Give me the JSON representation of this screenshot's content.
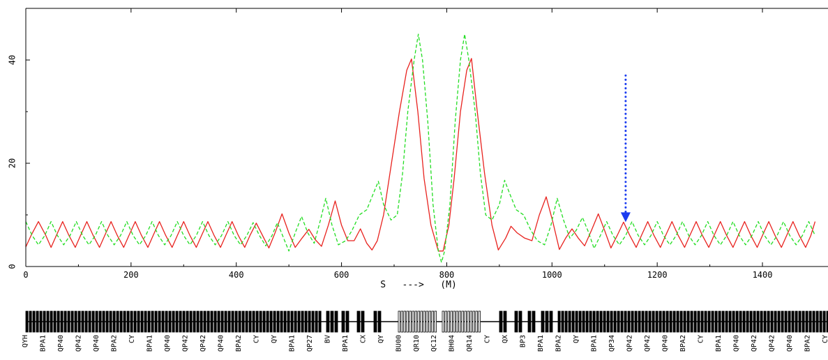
{
  "chart_data": {
    "type": "line",
    "title": "",
    "xlabel": "S   --->   (M)",
    "ylabel": "",
    "xlim": [
      0,
      1500
    ],
    "ylim": [
      0,
      46
    ],
    "xticks": [
      "0",
      "200",
      "400",
      "600",
      "800",
      "1000",
      "1200",
      "1400"
    ],
    "yticks": [
      "0",
      "20",
      "40"
    ],
    "grid": false,
    "legend": "none",
    "series": [
      {
        "color": "#e8221e",
        "style": "solid",
        "points": [
          [
            0,
            3.8
          ],
          [
            10,
            6
          ],
          [
            24,
            8.7
          ],
          [
            38,
            6
          ],
          [
            48,
            3.7
          ],
          [
            58,
            6
          ],
          [
            70,
            8.7
          ],
          [
            82,
            6
          ],
          [
            94,
            3.7
          ],
          [
            104,
            6
          ],
          [
            116,
            8.7
          ],
          [
            128,
            6
          ],
          [
            140,
            3.7
          ],
          [
            150,
            6
          ],
          [
            162,
            8.7
          ],
          [
            174,
            6
          ],
          [
            186,
            3.7
          ],
          [
            196,
            6
          ],
          [
            208,
            8.7
          ],
          [
            220,
            6
          ],
          [
            232,
            3.7
          ],
          [
            242,
            6
          ],
          [
            254,
            8.7
          ],
          [
            266,
            6
          ],
          [
            278,
            3.7
          ],
          [
            288,
            6
          ],
          [
            300,
            8.7
          ],
          [
            312,
            6
          ],
          [
            324,
            3.7
          ],
          [
            334,
            6
          ],
          [
            346,
            8.7
          ],
          [
            358,
            6
          ],
          [
            370,
            3.7
          ],
          [
            380,
            6
          ],
          [
            392,
            8.7
          ],
          [
            404,
            6
          ],
          [
            416,
            3.7
          ],
          [
            426,
            6
          ],
          [
            438,
            8.4
          ],
          [
            450,
            6
          ],
          [
            462,
            3.6
          ],
          [
            474,
            6.6
          ],
          [
            487,
            10.2
          ],
          [
            500,
            6.5
          ],
          [
            512,
            3.7
          ],
          [
            525,
            5.5
          ],
          [
            538,
            7.2
          ],
          [
            550,
            5.2
          ],
          [
            562,
            3.9
          ],
          [
            575,
            8
          ],
          [
            588,
            12.7
          ],
          [
            600,
            8
          ],
          [
            612,
            5
          ],
          [
            624,
            5
          ],
          [
            636,
            7.3
          ],
          [
            648,
            4.5
          ],
          [
            658,
            3.2
          ],
          [
            668,
            5
          ],
          [
            680,
            10
          ],
          [
            695,
            20
          ],
          [
            710,
            30
          ],
          [
            724,
            38
          ],
          [
            733,
            40.2
          ],
          [
            745,
            30
          ],
          [
            757,
            17
          ],
          [
            770,
            8
          ],
          [
            784,
            3
          ],
          [
            793,
            3
          ],
          [
            804,
            8
          ],
          [
            814,
            17
          ],
          [
            826,
            30
          ],
          [
            838,
            38
          ],
          [
            847,
            40.3
          ],
          [
            858,
            30
          ],
          [
            872,
            18
          ],
          [
            886,
            8
          ],
          [
            898,
            3.2
          ],
          [
            912,
            5.5
          ],
          [
            922,
            7.8
          ],
          [
            934,
            6.5
          ],
          [
            948,
            5.5
          ],
          [
            962,
            5
          ],
          [
            976,
            10
          ],
          [
            989,
            13.5
          ],
          [
            1002,
            8.5
          ],
          [
            1014,
            3.3
          ],
          [
            1026,
            5.5
          ],
          [
            1038,
            7.3
          ],
          [
            1050,
            5.5
          ],
          [
            1062,
            4
          ],
          [
            1075,
            7
          ],
          [
            1088,
            10.2
          ],
          [
            1100,
            7
          ],
          [
            1112,
            3.6
          ],
          [
            1124,
            6
          ],
          [
            1136,
            8.6
          ],
          [
            1148,
            6
          ],
          [
            1160,
            3.7
          ],
          [
            1170,
            6
          ],
          [
            1182,
            8.7
          ],
          [
            1194,
            6
          ],
          [
            1206,
            3.7
          ],
          [
            1216,
            6
          ],
          [
            1228,
            8.7
          ],
          [
            1240,
            6
          ],
          [
            1252,
            3.7
          ],
          [
            1262,
            6
          ],
          [
            1274,
            8.7
          ],
          [
            1286,
            6
          ],
          [
            1298,
            3.7
          ],
          [
            1308,
            6
          ],
          [
            1320,
            8.7
          ],
          [
            1332,
            6
          ],
          [
            1344,
            3.7
          ],
          [
            1354,
            6
          ],
          [
            1366,
            8.7
          ],
          [
            1378,
            6
          ],
          [
            1390,
            3.7
          ],
          [
            1400,
            6
          ],
          [
            1412,
            8.7
          ],
          [
            1424,
            6
          ],
          [
            1436,
            3.7
          ],
          [
            1446,
            6
          ],
          [
            1458,
            8.7
          ],
          [
            1470,
            6
          ],
          [
            1482,
            3.7
          ],
          [
            1492,
            6
          ],
          [
            1500,
            8.7
          ]
        ]
      },
      {
        "color": "#22dd22",
        "style": "dashed",
        "points": [
          [
            0,
            8.7
          ],
          [
            12,
            6
          ],
          [
            24,
            4.2
          ],
          [
            36,
            6
          ],
          [
            48,
            8.7
          ],
          [
            60,
            6
          ],
          [
            72,
            4.2
          ],
          [
            84,
            6
          ],
          [
            96,
            8.7
          ],
          [
            108,
            6
          ],
          [
            120,
            4.2
          ],
          [
            132,
            6
          ],
          [
            144,
            8.7
          ],
          [
            156,
            6
          ],
          [
            168,
            4.2
          ],
          [
            180,
            6
          ],
          [
            192,
            8.7
          ],
          [
            204,
            6
          ],
          [
            216,
            4.2
          ],
          [
            228,
            6
          ],
          [
            240,
            8.7
          ],
          [
            252,
            6
          ],
          [
            264,
            4.2
          ],
          [
            276,
            6
          ],
          [
            288,
            8.7
          ],
          [
            300,
            6
          ],
          [
            312,
            4.2
          ],
          [
            324,
            6
          ],
          [
            336,
            8.7
          ],
          [
            348,
            6
          ],
          [
            360,
            4.2
          ],
          [
            372,
            6
          ],
          [
            384,
            8.7
          ],
          [
            396,
            6
          ],
          [
            408,
            4.2
          ],
          [
            420,
            6
          ],
          [
            432,
            8.5
          ],
          [
            444,
            6
          ],
          [
            456,
            4
          ],
          [
            468,
            6
          ],
          [
            478,
            8.5
          ],
          [
            490,
            5.5
          ],
          [
            500,
            3
          ],
          [
            512,
            6.5
          ],
          [
            524,
            9.7
          ],
          [
            536,
            6.5
          ],
          [
            548,
            4.5
          ],
          [
            560,
            9
          ],
          [
            570,
            13.2
          ],
          [
            582,
            8
          ],
          [
            594,
            4.2
          ],
          [
            608,
            5
          ],
          [
            620,
            7
          ],
          [
            634,
            10
          ],
          [
            648,
            11
          ],
          [
            660,
            14
          ],
          [
            670,
            16.5
          ],
          [
            680,
            12
          ],
          [
            694,
            9
          ],
          [
            706,
            10
          ],
          [
            716,
            18
          ],
          [
            726,
            30
          ],
          [
            738,
            40
          ],
          [
            746,
            45
          ],
          [
            754,
            40
          ],
          [
            764,
            28
          ],
          [
            774,
            12
          ],
          [
            784,
            3
          ],
          [
            790,
            0.8
          ],
          [
            796,
            3
          ],
          [
            806,
            12
          ],
          [
            816,
            28
          ],
          [
            826,
            40
          ],
          [
            834,
            45
          ],
          [
            842,
            40
          ],
          [
            854,
            30
          ],
          [
            864,
            18
          ],
          [
            874,
            10
          ],
          [
            886,
            9
          ],
          [
            900,
            12
          ],
          [
            910,
            16.7
          ],
          [
            920,
            14
          ],
          [
            932,
            11
          ],
          [
            946,
            10
          ],
          [
            960,
            7
          ],
          [
            972,
            5
          ],
          [
            986,
            4.2
          ],
          [
            998,
            8
          ],
          [
            1010,
            13.2
          ],
          [
            1022,
            9
          ],
          [
            1034,
            5.5
          ],
          [
            1046,
            7
          ],
          [
            1058,
            9.5
          ],
          [
            1070,
            6.5
          ],
          [
            1080,
            3.5
          ],
          [
            1092,
            6
          ],
          [
            1104,
            8.7
          ],
          [
            1116,
            6
          ],
          [
            1128,
            4.2
          ],
          [
            1140,
            6
          ],
          [
            1152,
            8.7
          ],
          [
            1164,
            6
          ],
          [
            1176,
            4.2
          ],
          [
            1188,
            6
          ],
          [
            1200,
            8.7
          ],
          [
            1212,
            6
          ],
          [
            1224,
            4.2
          ],
          [
            1236,
            6
          ],
          [
            1248,
            8.7
          ],
          [
            1260,
            6
          ],
          [
            1272,
            4.2
          ],
          [
            1284,
            6
          ],
          [
            1296,
            8.7
          ],
          [
            1308,
            6
          ],
          [
            1320,
            4.2
          ],
          [
            1332,
            6
          ],
          [
            1344,
            8.7
          ],
          [
            1356,
            6
          ],
          [
            1368,
            4.2
          ],
          [
            1380,
            6
          ],
          [
            1392,
            8.7
          ],
          [
            1404,
            6
          ],
          [
            1416,
            4.2
          ],
          [
            1428,
            6
          ],
          [
            1440,
            8.7
          ],
          [
            1452,
            6
          ],
          [
            1464,
            4.2
          ],
          [
            1476,
            6
          ],
          [
            1488,
            8.7
          ],
          [
            1500,
            6
          ]
        ]
      }
    ],
    "annotation": {
      "type": "arrow",
      "color": "#1b3cf0",
      "style": "dotted",
      "x": 1140,
      "from_y": 37,
      "to_y": 8.6
    },
    "lattice": {
      "line_color": "#000000",
      "element_labels": [
        "QYH",
        "BPA1",
        "QP40",
        "QP42",
        "QP40",
        "BPA2",
        "CY",
        "BPA1",
        "QP40",
        "QP42",
        "QP42",
        "QP40",
        "BPA2",
        "CY",
        "QY",
        "BPA1",
        "QP27",
        "BV",
        "BPA1",
        "CX",
        "QY",
        "BU00",
        "QR10",
        "QC12",
        "BH04",
        "QR14",
        "CY",
        "QX",
        "BP3",
        "BPA1",
        "BPA2",
        "QY",
        "BPA1",
        "QP34",
        "QP42",
        "QP42",
        "QP40",
        "BPA2",
        "CY",
        "BPA1",
        "QP40",
        "QP42",
        "QP42",
        "QP40",
        "BPA2",
        "CY"
      ]
    }
  }
}
